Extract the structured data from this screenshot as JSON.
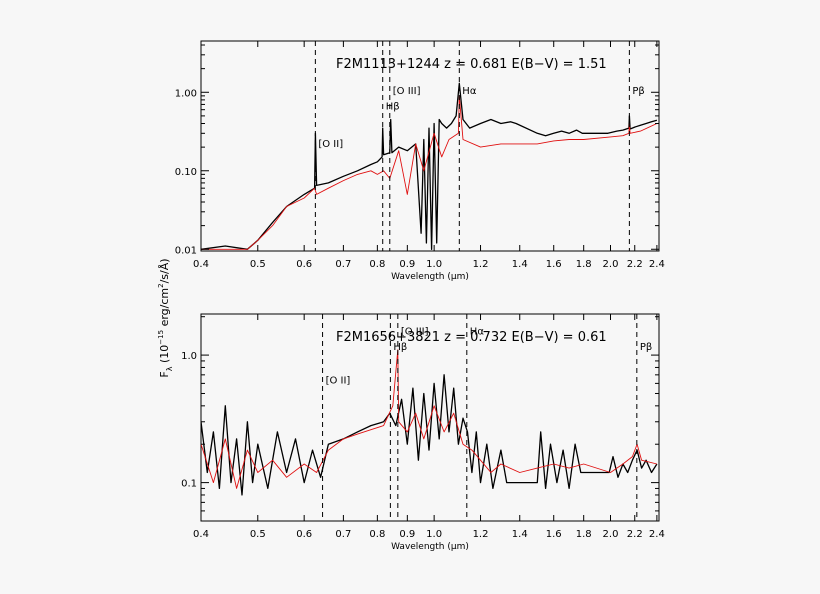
{
  "ylabel": "F_λ (10^-15 erg/cm²/s/Å)",
  "ylabel_parts": {
    "main": "F",
    "sub": "λ",
    "rest": " (10",
    "exp": "−15",
    "rest2": " erg/cm",
    "exp2": "2",
    "rest3": "/s/Å)"
  },
  "colors": {
    "observed": "#000000",
    "template": "#e01010",
    "background": "#f7f7f7"
  },
  "chart_data": [
    {
      "type": "line",
      "title": "F2M1113+1244  z = 0.681  E(B−V) = 1.51",
      "xlabel": "Wavelength (μm)",
      "ylabel": "",
      "xscale": "log",
      "yscale": "log",
      "xlim": [
        0.4,
        2.42
      ],
      "ylim": [
        0.0095,
        4.5
      ],
      "xticks": [
        0.4,
        0.5,
        0.6,
        0.7,
        0.8,
        0.9,
        1.0,
        1.2,
        1.4,
        1.6,
        1.8,
        2.0,
        2.2,
        2.4
      ],
      "xtick_labels": [
        "0.4",
        "0.5",
        "0.6",
        "0.7",
        "0.8",
        "0.9",
        "1.0",
        "1.2",
        "1.4",
        "1.6",
        "1.8",
        "2.0",
        "2.2",
        "2.4"
      ],
      "yticks": [
        0.01,
        0.1,
        1.0
      ],
      "ytick_labels": [
        "0.01",
        "0.10",
        "1.00"
      ],
      "line_markers": [
        {
          "label": "[O II]",
          "x": 0.627,
          "y": 0.2
        },
        {
          "label": "Hβ",
          "x": 0.817,
          "y": 0.6
        },
        {
          "label": "[O III]",
          "x": 0.84,
          "y": 0.95
        },
        {
          "label": "Hα",
          "x": 1.104,
          "y": 0.95
        },
        {
          "label": "Pβ",
          "x": 2.154,
          "y": 0.95
        }
      ],
      "series": [
        {
          "color": "#000000",
          "x": [
            0.4,
            0.44,
            0.48,
            0.5,
            0.53,
            0.56,
            0.6,
            0.625,
            0.627,
            0.63,
            0.66,
            0.7,
            0.74,
            0.78,
            0.8,
            0.815,
            0.817,
            0.82,
            0.84,
            0.843,
            0.847,
            0.87,
            0.9,
            0.93,
            0.95,
            0.96,
            0.97,
            0.98,
            0.99,
            1.0,
            1.01,
            1.02,
            1.03,
            1.05,
            1.07,
            1.09,
            1.104,
            1.12,
            1.15,
            1.2,
            1.25,
            1.3,
            1.35,
            1.38,
            1.5,
            1.55,
            1.6,
            1.65,
            1.7,
            1.75,
            1.79,
            1.98,
            2.05,
            2.1,
            2.15,
            2.154,
            2.16,
            2.2,
            2.25,
            2.3,
            2.35,
            2.4
          ],
          "y": [
            0.01,
            0.011,
            0.01,
            0.013,
            0.022,
            0.035,
            0.05,
            0.06,
            0.3,
            0.065,
            0.07,
            0.085,
            0.1,
            0.12,
            0.13,
            0.15,
            0.35,
            0.16,
            0.17,
            0.45,
            0.17,
            0.2,
            0.18,
            0.22,
            0.016,
            0.25,
            0.012,
            0.35,
            0.01,
            0.4,
            0.012,
            0.45,
            0.4,
            0.35,
            0.4,
            0.5,
            1.3,
            0.45,
            0.35,
            0.4,
            0.45,
            0.4,
            0.42,
            0.4,
            0.3,
            0.28,
            0.3,
            0.32,
            0.3,
            0.33,
            0.3,
            0.3,
            0.32,
            0.33,
            0.35,
            0.5,
            0.34,
            0.36,
            0.38,
            0.4,
            0.42,
            0.44
          ]
        },
        {
          "color": "#e01010",
          "x": [
            0.4,
            0.48,
            0.5,
            0.53,
            0.56,
            0.6,
            0.625,
            0.63,
            0.66,
            0.7,
            0.74,
            0.78,
            0.8,
            0.82,
            0.84,
            0.87,
            0.9,
            0.93,
            0.96,
            1.0,
            1.03,
            1.06,
            1.1,
            1.104,
            1.12,
            1.2,
            1.3,
            1.4,
            1.5,
            1.6,
            1.7,
            1.8,
            2.0,
            2.1,
            2.15,
            2.154,
            2.16,
            2.25,
            2.4
          ],
          "y": [
            0.01,
            0.01,
            0.013,
            0.02,
            0.035,
            0.045,
            0.06,
            0.05,
            0.06,
            0.075,
            0.09,
            0.1,
            0.09,
            0.1,
            0.08,
            0.18,
            0.05,
            0.22,
            0.1,
            0.3,
            0.15,
            0.25,
            0.3,
            0.9,
            0.25,
            0.2,
            0.22,
            0.22,
            0.22,
            0.24,
            0.25,
            0.25,
            0.27,
            0.28,
            0.3,
            0.4,
            0.3,
            0.32,
            0.4
          ]
        }
      ]
    },
    {
      "type": "line",
      "title": "F2M1656+3821  z = 0.732  E(B−V) = 0.61",
      "xlabel": "Wavelength (μm)",
      "ylabel": "",
      "xscale": "log",
      "yscale": "log",
      "xlim": [
        0.4,
        2.42
      ],
      "ylim": [
        0.05,
        2.1
      ],
      "xticks": [
        0.4,
        0.5,
        0.6,
        0.7,
        0.8,
        0.9,
        1.0,
        1.2,
        1.4,
        1.6,
        1.8,
        2.0,
        2.2,
        2.4
      ],
      "xtick_labels": [
        "0.4",
        "0.5",
        "0.6",
        "0.7",
        "0.8",
        "0.9",
        "1.0",
        "1.2",
        "1.4",
        "1.6",
        "1.8",
        "2.0",
        "2.2",
        "2.4"
      ],
      "yticks": [
        0.1,
        1.0
      ],
      "ytick_labels": [
        "0.1",
        "1.0"
      ],
      "line_markers": [
        {
          "label": "[O II]",
          "x": 0.645,
          "y": 0.6
        },
        {
          "label": "Hβ",
          "x": 0.842,
          "y": 1.1
        },
        {
          "label": "[O III]",
          "x": 0.867,
          "y": 1.45
        },
        {
          "label": "Hα",
          "x": 1.137,
          "y": 1.45
        },
        {
          "label": "Pβ",
          "x": 2.218,
          "y": 1.1
        }
      ],
      "series": [
        {
          "color": "#000000",
          "x": [
            0.4,
            0.41,
            0.42,
            0.43,
            0.44,
            0.45,
            0.46,
            0.47,
            0.48,
            0.49,
            0.5,
            0.52,
            0.54,
            0.56,
            0.58,
            0.6,
            0.62,
            0.64,
            0.66,
            0.7,
            0.74,
            0.78,
            0.82,
            0.84,
            0.86,
            0.88,
            0.9,
            0.92,
            0.94,
            0.96,
            0.98,
            1.0,
            1.02,
            1.04,
            1.06,
            1.08,
            1.1,
            1.12,
            1.14,
            1.16,
            1.18,
            1.2,
            1.23,
            1.26,
            1.3,
            1.33,
            1.5,
            1.52,
            1.55,
            1.58,
            1.62,
            1.66,
            1.7,
            1.74,
            1.78,
            1.99,
            2.02,
            2.06,
            2.1,
            2.14,
            2.18,
            2.22,
            2.26,
            2.3,
            2.35,
            2.4
          ],
          "y": [
            0.3,
            0.12,
            0.25,
            0.09,
            0.4,
            0.1,
            0.22,
            0.08,
            0.3,
            0.1,
            0.2,
            0.09,
            0.25,
            0.12,
            0.22,
            0.1,
            0.18,
            0.11,
            0.2,
            0.22,
            0.25,
            0.28,
            0.3,
            0.35,
            0.28,
            0.45,
            0.2,
            0.55,
            0.15,
            0.5,
            0.18,
            0.6,
            0.22,
            0.7,
            0.25,
            0.55,
            0.2,
            0.32,
            0.25,
            0.12,
            0.25,
            0.1,
            0.2,
            0.09,
            0.18,
            0.1,
            0.1,
            0.25,
            0.09,
            0.2,
            0.1,
            0.18,
            0.09,
            0.2,
            0.12,
            0.12,
            0.16,
            0.11,
            0.14,
            0.12,
            0.15,
            0.18,
            0.13,
            0.15,
            0.12,
            0.14
          ]
        },
        {
          "color": "#e01010",
          "x": [
            0.4,
            0.42,
            0.44,
            0.46,
            0.48,
            0.5,
            0.53,
            0.56,
            0.6,
            0.63,
            0.66,
            0.7,
            0.74,
            0.78,
            0.82,
            0.85,
            0.867,
            0.87,
            0.9,
            0.93,
            0.96,
            1.0,
            1.04,
            1.08,
            1.12,
            1.16,
            1.2,
            1.25,
            1.3,
            1.4,
            1.5,
            1.6,
            1.7,
            1.8,
            2.0,
            2.1,
            2.18,
            2.22,
            2.26,
            2.4
          ],
          "y": [
            0.2,
            0.1,
            0.22,
            0.09,
            0.18,
            0.12,
            0.15,
            0.11,
            0.14,
            0.12,
            0.18,
            0.22,
            0.24,
            0.26,
            0.28,
            0.4,
            1.1,
            0.3,
            0.25,
            0.35,
            0.22,
            0.4,
            0.25,
            0.35,
            0.2,
            0.18,
            0.15,
            0.12,
            0.14,
            0.12,
            0.13,
            0.14,
            0.13,
            0.14,
            0.12,
            0.14,
            0.16,
            0.2,
            0.15,
            0.14
          ]
        }
      ]
    }
  ]
}
